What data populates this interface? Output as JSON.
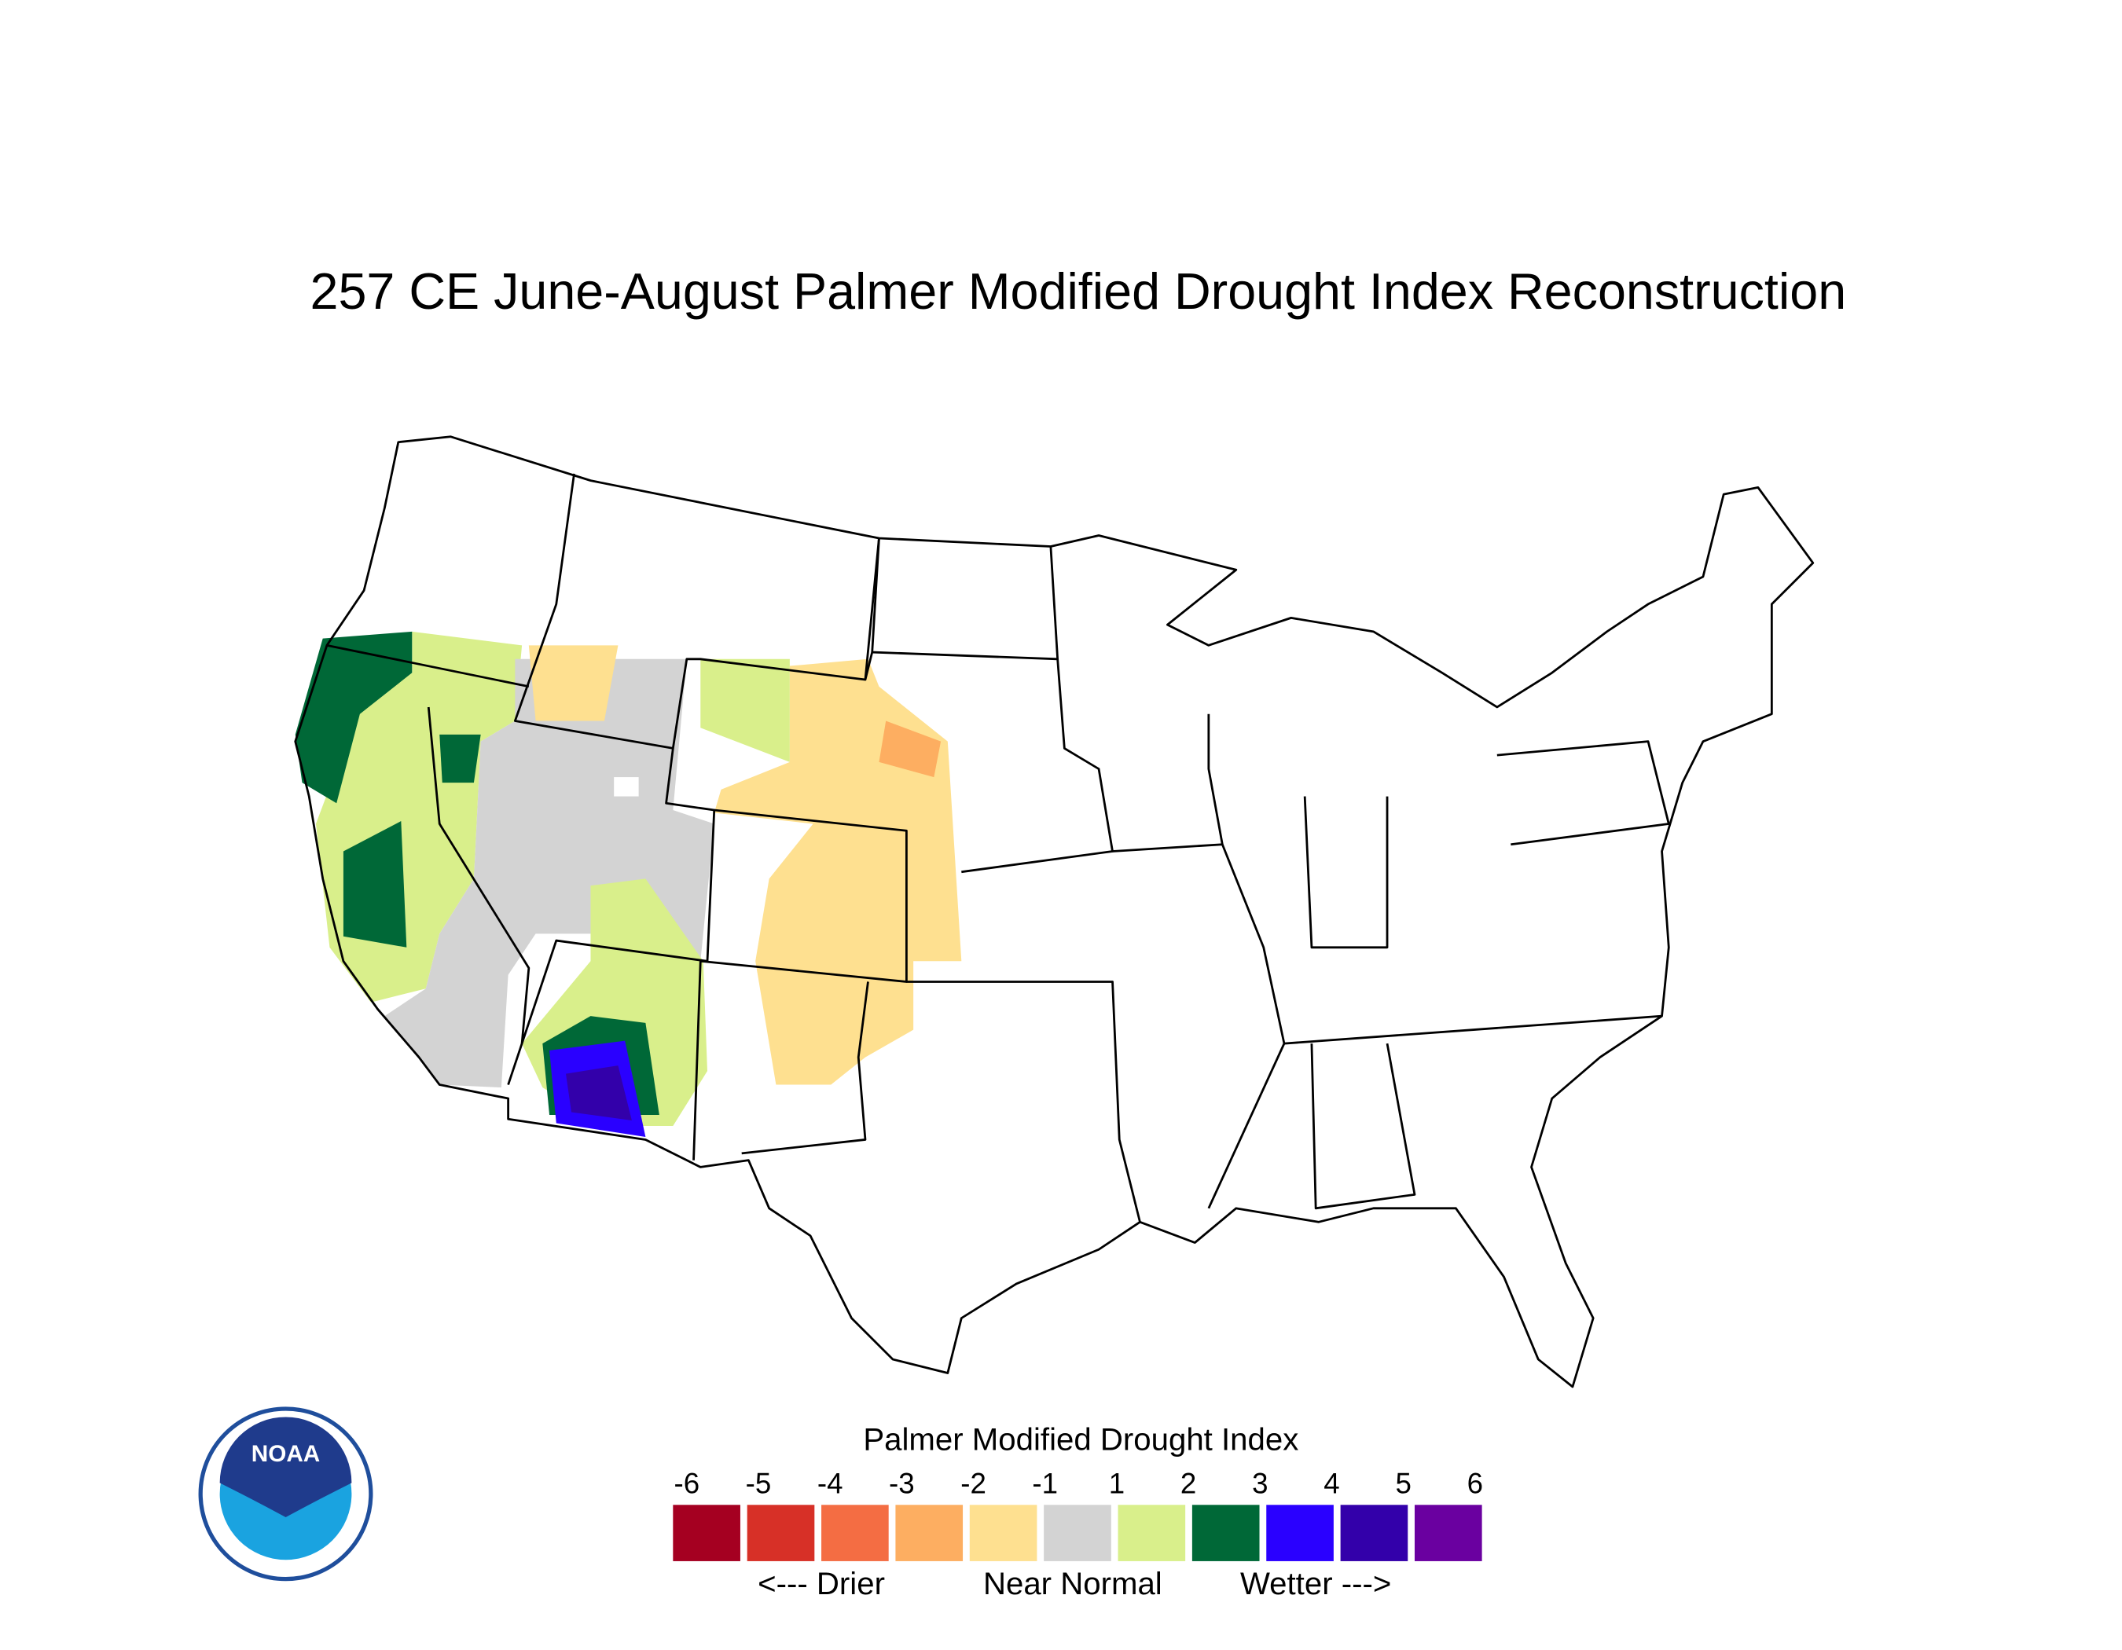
{
  "title": "257 CE  June-August  Palmer Modified Drought Index Reconstruction",
  "legend": {
    "title": "Palmer Modified Drought Index",
    "ticks": [
      -6,
      -5,
      -4,
      -3,
      -2,
      -1,
      1,
      2,
      3,
      4,
      5,
      6
    ],
    "colors": [
      "#a50021",
      "#d73027",
      "#f46d43",
      "#fdae61",
      "#fee090",
      "#d3d3d3",
      "#d9ef8b",
      "#006837",
      "#2a00ff",
      "#3300aa",
      "#6a00a0"
    ],
    "captions": [
      "<--- Drier",
      "Near Normal",
      "Wetter --->"
    ]
  },
  "logo": {
    "text": "NOAA"
  }
}
